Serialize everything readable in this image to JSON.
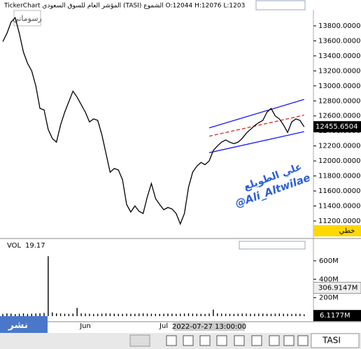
{
  "chart_data": {
    "type": "line",
    "title": "TickerChart  المؤشر العام للسوق السعودي (TASI) الشموع O:12044 H:12076 L:1203",
    "symbol": "TASI",
    "my_drawings": "رسوماتي",
    "line_label": "خطي",
    "publish": "نشر",
    "watermark": [
      "علي الطويلع",
      "@Ali_Altwilae"
    ],
    "crosshair_date": "2022-07-27 13:00:00",
    "categories": [
      null,
      null,
      null,
      null,
      null,
      null,
      null,
      null,
      null,
      null,
      null,
      null,
      null,
      null,
      null,
      null,
      null,
      null,
      null,
      null,
      "Jun",
      null,
      null,
      null,
      null,
      null,
      null,
      null,
      null,
      null,
      null,
      null,
      null,
      null,
      null,
      null,
      null,
      null,
      null,
      "Jul",
      null,
      null,
      null,
      null,
      null,
      null,
      null,
      null,
      null,
      null,
      null,
      null,
      null,
      null,
      null,
      null,
      null,
      null,
      null,
      null,
      null,
      null,
      null,
      null,
      null,
      null,
      null,
      null,
      null,
      null,
      null,
      null,
      null,
      null
    ],
    "series": [
      {
        "name": "TASI",
        "color": "#000000",
        "values": [
          13590,
          13700,
          13850,
          13910,
          13700,
          13450,
          13300,
          13200,
          13000,
          12700,
          12680,
          12420,
          12300,
          12250,
          12480,
          12650,
          12790,
          12930,
          12850,
          12750,
          12650,
          12520,
          12560,
          12540,
          12350,
          12100,
          11850,
          11900,
          11880,
          11750,
          11420,
          11320,
          11400,
          11330,
          11300,
          11520,
          11700,
          11500,
          11420,
          11350,
          11380,
          11360,
          11300,
          11160,
          11300,
          11650,
          11850,
          11930,
          11980,
          11950,
          12000,
          12140,
          12200,
          12250,
          12280,
          12250,
          12230,
          12250,
          12300,
          12370,
          12420,
          12470,
          12510,
          12540,
          12650,
          12700,
          12600,
          12560,
          12480,
          12380,
          12520,
          12560,
          12540,
          12455
        ]
      }
    ],
    "last_price": 12455.6504,
    "ylim": [
      10976,
      14014
    ],
    "yticks": [
      {
        "value": 13800,
        "label": "13800.0000"
      },
      {
        "value": 13600,
        "label": "13600.0000"
      },
      {
        "value": 13400,
        "label": "13400.0000"
      },
      {
        "value": 13200,
        "label": "13200.0000"
      },
      {
        "value": 13000,
        "label": "13000.0000"
      },
      {
        "value": 12800,
        "label": "12800.0000"
      },
      {
        "value": 12600,
        "label": "12600.0000"
      },
      {
        "value": 12400,
        "label": "12400.0000"
      },
      {
        "value": 12200,
        "label": "12200.0000"
      },
      {
        "value": 12000,
        "label": "12000.0000"
      },
      {
        "value": 11800,
        "label": "11800.0000"
      },
      {
        "value": 11600,
        "label": "11600.0000"
      },
      {
        "value": 11400,
        "label": "11400.0000"
      },
      {
        "value": 11200,
        "label": "11200.0000"
      }
    ],
    "trendlines": [
      {
        "color": "#1a1aff",
        "points": [
          [
            50,
            12440
          ],
          [
            73,
            12820
          ]
        ]
      },
      {
        "color": "#1a1aff",
        "points": [
          [
            50,
            12110
          ],
          [
            73,
            12390
          ]
        ]
      },
      {
        "color": "#e02020",
        "dashed": true,
        "points": [
          [
            50,
            12330
          ],
          [
            73,
            12610
          ]
        ]
      }
    ],
    "volume": {
      "label": "VOL",
      "last": 19.17,
      "color": "#000000",
      "values": [
        25,
        30,
        28,
        22,
        26,
        30,
        24,
        27,
        29,
        32,
        35,
        650,
        40,
        30,
        28,
        26,
        25,
        27,
        90,
        30,
        28,
        26,
        24,
        25,
        27,
        30,
        28,
        26,
        25,
        24,
        27,
        26,
        25,
        28,
        30,
        27,
        26,
        25,
        24,
        26,
        28,
        27,
        25,
        26,
        28,
        30,
        27,
        26,
        25,
        24,
        28,
        70,
        30,
        27,
        26,
        25,
        24,
        26,
        28,
        27,
        25,
        26,
        27,
        28,
        26,
        25,
        27,
        28,
        26,
        25,
        24,
        26,
        25,
        19.17
      ],
      "ylim": [
        0,
        713
      ],
      "yticks": [
        {
          "value": 600,
          "label": "600M"
        },
        {
          "value": 400,
          "label": "400M"
        },
        {
          "value": 200,
          "label": "200M"
        }
      ],
      "cursor": {
        "value": 306.9147,
        "label": "306.9147M"
      },
      "last_mark": {
        "value": 6.1177,
        "label": "6.1177M"
      }
    }
  }
}
